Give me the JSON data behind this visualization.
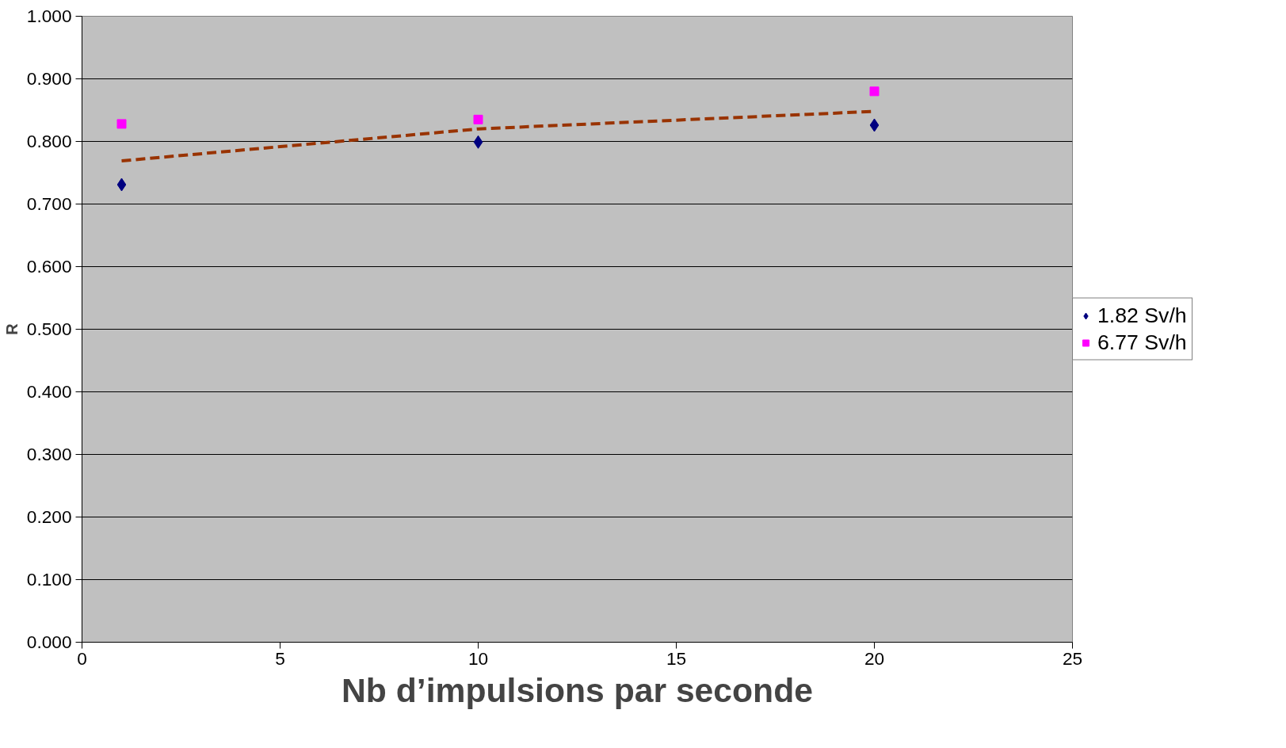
{
  "chart_data": {
    "type": "scatter",
    "xlabel": "Nb d’impulsions par seconde",
    "ylabel": "R",
    "xlim": [
      0,
      25
    ],
    "xticks": [
      0,
      5,
      10,
      15,
      20,
      25
    ],
    "ylim": [
      0,
      1
    ],
    "yticks": [
      {
        "value": 0,
        "label": "0.000"
      },
      {
        "value": 0.1,
        "label": "0.100"
      },
      {
        "value": 0.2,
        "label": "0.200"
      },
      {
        "value": 0.3,
        "label": "0.300"
      },
      {
        "value": 0.4,
        "label": "0.400"
      },
      {
        "value": 0.5,
        "label": "0.500"
      },
      {
        "value": 0.6,
        "label": "0.600"
      },
      {
        "value": 0.7,
        "label": "0.700"
      },
      {
        "value": 0.8,
        "label": "0.800"
      },
      {
        "value": 0.9,
        "label": "0.900"
      },
      {
        "value": 1,
        "label": "1.000"
      }
    ],
    "grid": "y",
    "legend": "right",
    "series": [
      {
        "name": "1.82 Sv/h",
        "color": "#000080",
        "marker": "diamond",
        "x": [
          1,
          10,
          20
        ],
        "values": [
          0.731,
          0.799,
          0.826
        ]
      },
      {
        "name": "6.77 Sv/h",
        "color": "#ff00ff",
        "marker": "square",
        "x": [
          1,
          10,
          20
        ],
        "values": [
          0.828,
          0.835,
          0.88
        ]
      },
      {
        "type": "line",
        "color": "#993300",
        "line_style": "dashed",
        "marker": "none",
        "x": [
          1,
          10,
          20
        ],
        "values": [
          0.769,
          0.82,
          0.848
        ]
      }
    ]
  }
}
